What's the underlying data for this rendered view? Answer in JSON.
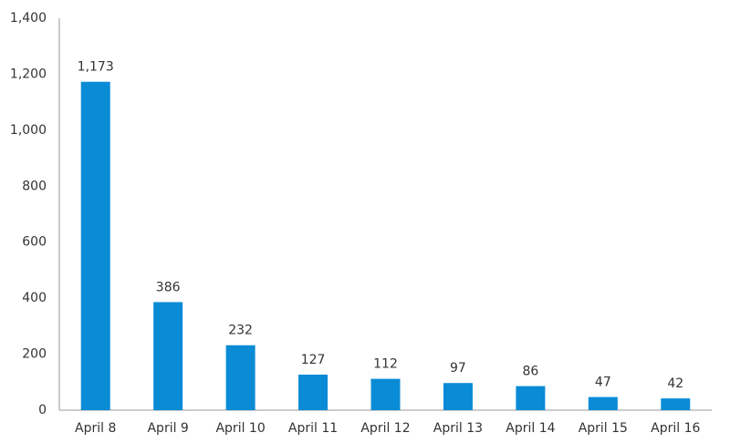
{
  "chart_data": {
    "type": "bar",
    "categories": [
      "April 8",
      "April 9",
      "April 10",
      "April 11",
      "April 12",
      "April 13",
      "April 14",
      "April 15",
      "April 16"
    ],
    "values": [
      1173,
      386,
      232,
      127,
      112,
      97,
      86,
      47,
      42
    ],
    "value_labels": [
      "1,173",
      "386",
      "232",
      "127",
      "112",
      "97",
      "86",
      "47",
      "42"
    ],
    "color": "#0a8bd6",
    "ylim": [
      0,
      1400
    ],
    "yticks": [
      0,
      200,
      400,
      600,
      800,
      {
        "value": 1000,
        "label": "1,000"
      },
      {
        "value": 1200,
        "label": "1,200"
      },
      {
        "value": 1400,
        "label": "1,400"
      }
    ],
    "grid": false
  }
}
